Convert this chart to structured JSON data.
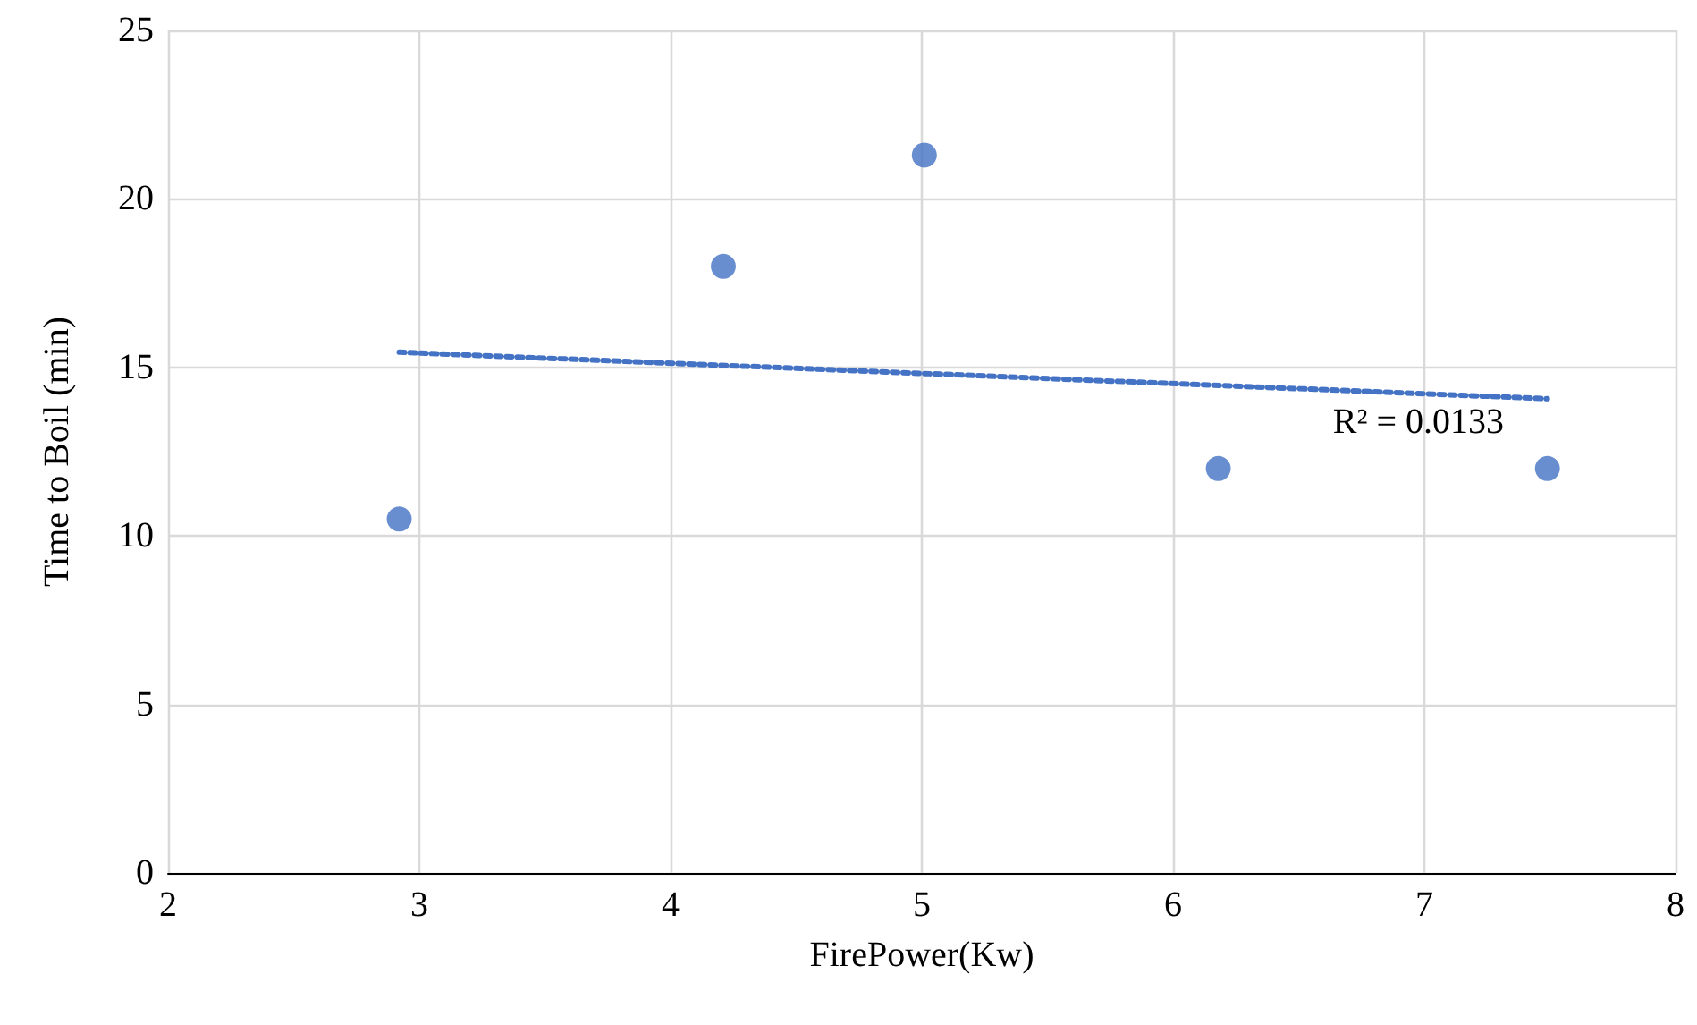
{
  "chart_data": {
    "type": "scatter",
    "xlabel": "FirePower(Kw)",
    "ylabel": "Time to Boil (min)",
    "series": [
      {
        "color": "#4472c4",
        "x": [
          2.92,
          4.21,
          5.01,
          6.18,
          7.49
        ],
        "values": [
          10.5,
          18,
          21.3,
          12,
          12
        ],
        "marker": "circle"
      },
      {
        "type": "line",
        "color": "#4472c4",
        "x": [
          2.92,
          7.49
        ],
        "values": [
          15.45,
          14.07
        ],
        "line_style": "dotted",
        "marker": "none"
      }
    ],
    "annotations": [
      "R² = 0.0133"
    ],
    "xlim": [
      2,
      8
    ],
    "xticks": [
      2,
      3,
      4,
      5,
      6,
      7,
      8
    ],
    "ylim": [
      0,
      25
    ],
    "yticks": [
      0,
      5,
      10,
      15,
      20,
      25
    ],
    "grid": true
  }
}
